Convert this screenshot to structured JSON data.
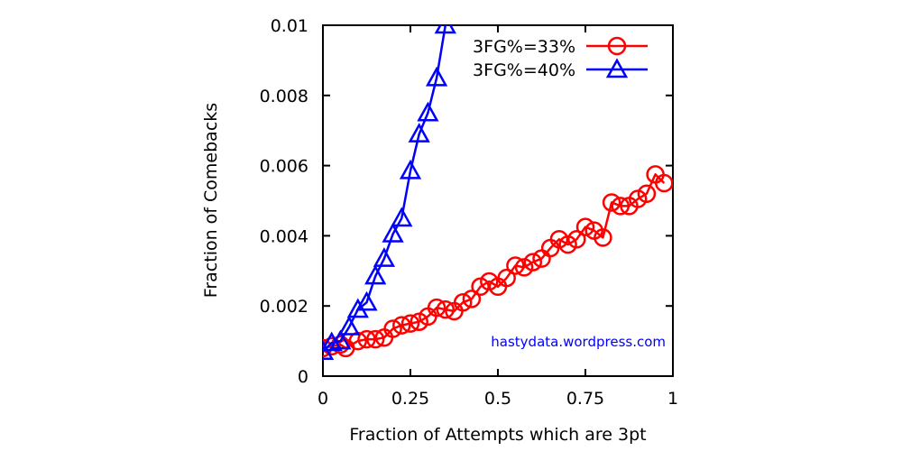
{
  "chart_data": {
    "type": "line",
    "xlabel": "Fraction of Attempts which are 3pt",
    "ylabel": "Fraction of Comebacks",
    "xlim": [
      0,
      1
    ],
    "ylim": [
      0,
      0.01
    ],
    "x_ticks": [
      0,
      0.25,
      0.5,
      0.75,
      1
    ],
    "x_tick_labels": [
      "0",
      "0.25",
      "0.5",
      "0.75",
      "1"
    ],
    "y_ticks": [
      0,
      0.002,
      0.004,
      0.006,
      0.008,
      0.01
    ],
    "y_tick_labels": [
      "0",
      "0.002",
      "0.004",
      "0.006",
      "0.008",
      "0.01"
    ],
    "grid": false,
    "legend_position": "top-right",
    "annotation": "hastydata.wordpress.com",
    "series": [
      {
        "name": "3FG%=33%",
        "color": "#ff0000",
        "marker": "circle",
        "points": [
          [
            0.0,
            0.0008
          ],
          [
            0.025,
            0.00085
          ],
          [
            0.05,
            0.0009
          ],
          [
            0.065,
            0.0008
          ],
          [
            0.1,
            0.001
          ],
          [
            0.125,
            0.00105
          ],
          [
            0.15,
            0.00105
          ],
          [
            0.175,
            0.0011
          ],
          [
            0.2,
            0.00135
          ],
          [
            0.225,
            0.00145
          ],
          [
            0.25,
            0.0015
          ],
          [
            0.275,
            0.00155
          ],
          [
            0.3,
            0.0017
          ],
          [
            0.325,
            0.00195
          ],
          [
            0.35,
            0.0019
          ],
          [
            0.375,
            0.00185
          ],
          [
            0.4,
            0.0021
          ],
          [
            0.425,
            0.0022
          ],
          [
            0.45,
            0.00255
          ],
          [
            0.475,
            0.0027
          ],
          [
            0.5,
            0.00255
          ],
          [
            0.525,
            0.0028
          ],
          [
            0.55,
            0.00315
          ],
          [
            0.575,
            0.0031
          ],
          [
            0.6,
            0.00325
          ],
          [
            0.625,
            0.00335
          ],
          [
            0.65,
            0.00365
          ],
          [
            0.675,
            0.0039
          ],
          [
            0.7,
            0.00375
          ],
          [
            0.725,
            0.0039
          ],
          [
            0.75,
            0.00425
          ],
          [
            0.775,
            0.00415
          ],
          [
            0.8,
            0.00395
          ],
          [
            0.825,
            0.00495
          ],
          [
            0.85,
            0.00485
          ],
          [
            0.875,
            0.00485
          ],
          [
            0.9,
            0.00505
          ],
          [
            0.925,
            0.0052
          ],
          [
            0.95,
            0.00575
          ],
          [
            0.975,
            0.0055
          ]
        ]
      },
      {
        "name": "3FG%=40%",
        "color": "#0000ff",
        "marker": "triangle",
        "points": [
          [
            0.0,
            0.0007
          ],
          [
            0.025,
            0.00095
          ],
          [
            0.05,
            0.001
          ],
          [
            0.075,
            0.0014
          ],
          [
            0.1,
            0.0019
          ],
          [
            0.125,
            0.0021
          ],
          [
            0.15,
            0.00285
          ],
          [
            0.175,
            0.00335
          ],
          [
            0.2,
            0.00405
          ],
          [
            0.225,
            0.0045
          ],
          [
            0.25,
            0.00585
          ],
          [
            0.275,
            0.0069
          ],
          [
            0.3,
            0.0075
          ],
          [
            0.325,
            0.0085
          ],
          [
            0.35,
            0.01
          ]
        ]
      }
    ]
  }
}
